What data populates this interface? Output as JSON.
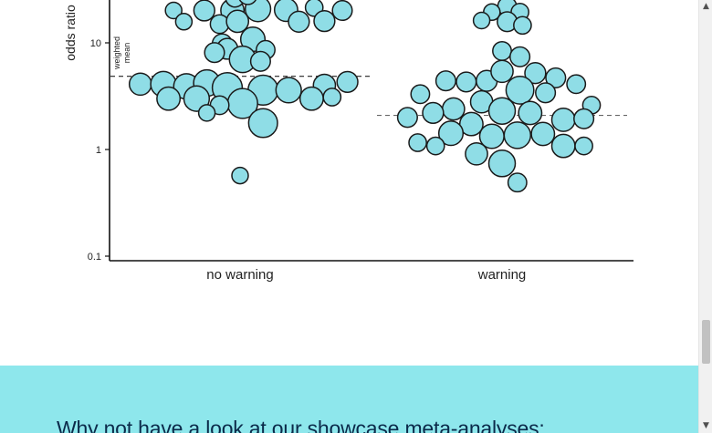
{
  "chart_data": {
    "type": "scatter",
    "title": "",
    "xlabel": "",
    "ylabel": "odds ratio",
    "y_scale": "log",
    "ylim": [
      0.08,
      25
    ],
    "categories": [
      "no warning",
      "warning"
    ],
    "yticks": [
      {
        "value": 0.1,
        "label": "0.1"
      },
      {
        "value": 1,
        "label": "1"
      },
      {
        "value": 10,
        "label": "10"
      }
    ],
    "annotation": [
      "weighted",
      "mean"
    ],
    "fill_color": "#8fdde6",
    "stroke_color": "#1a1a1a",
    "reference_line_dark": "#222222",
    "reference_line_light": "#666666",
    "series": [
      {
        "category": "no warning",
        "weighted_mean": 4.86,
        "points": [
          {
            "offset": -2.6,
            "y": 20.1,
            "w": 0.8
          },
          {
            "offset": -1.4,
            "y": 20.1,
            "w": 1.2
          },
          {
            "offset": -0.3,
            "y": 20.1,
            "w": 1.4
          },
          {
            "offset": 0.7,
            "y": 20.8,
            "w": 1.6
          },
          {
            "offset": 1.8,
            "y": 20.4,
            "w": 1.4
          },
          {
            "offset": 2.9,
            "y": 21.4,
            "w": 0.9
          },
          {
            "offset": 4.0,
            "y": 20.1,
            "w": 1.1
          },
          {
            "offset": -2.2,
            "y": 15.8,
            "w": 0.8
          },
          {
            "offset": -0.8,
            "y": 15.0,
            "w": 1.0
          },
          {
            "offset": -0.1,
            "y": 15.9,
            "w": 1.3
          },
          {
            "offset": 2.3,
            "y": 15.8,
            "w": 1.2
          },
          {
            "offset": 3.3,
            "y": 16.0,
            "w": 1.2
          },
          {
            "offset": -0.2,
            "y": 26.5,
            "w": 1.0
          },
          {
            "offset": 0.3,
            "y": 28.0,
            "w": 1.0
          },
          {
            "offset": -0.7,
            "y": 9.8,
            "w": 1.1
          },
          {
            "offset": 0.5,
            "y": 10.8,
            "w": 1.5
          },
          {
            "offset": -0.5,
            "y": 8.8,
            "w": 1.2
          },
          {
            "offset": 1.0,
            "y": 8.6,
            "w": 1.0
          },
          {
            "offset": -1.0,
            "y": 8.1,
            "w": 1.1
          },
          {
            "offset": 0.1,
            "y": 7.0,
            "w": 1.7
          },
          {
            "offset": 0.8,
            "y": 6.7,
            "w": 1.1
          },
          {
            "offset": -3.9,
            "y": 4.1,
            "w": 1.3
          },
          {
            "offset": -3.0,
            "y": 4.1,
            "w": 1.6
          },
          {
            "offset": -2.1,
            "y": 3.9,
            "w": 1.6
          },
          {
            "offset": -1.3,
            "y": 4.2,
            "w": 1.7
          },
          {
            "offset": -0.5,
            "y": 3.8,
            "w": 2.0
          },
          {
            "offset": 0.9,
            "y": 3.6,
            "w": 2.0
          },
          {
            "offset": 1.9,
            "y": 3.6,
            "w": 1.6
          },
          {
            "offset": 3.3,
            "y": 4.0,
            "w": 1.3
          },
          {
            "offset": 4.2,
            "y": 4.3,
            "w": 1.2
          },
          {
            "offset": -2.8,
            "y": 3.0,
            "w": 1.4
          },
          {
            "offset": -1.7,
            "y": 3.0,
            "w": 1.6
          },
          {
            "offset": 0.1,
            "y": 2.7,
            "w": 2.0
          },
          {
            "offset": 2.8,
            "y": 3.0,
            "w": 1.4
          },
          {
            "offset": 3.6,
            "y": 3.1,
            "w": 0.9
          },
          {
            "offset": -0.8,
            "y": 2.6,
            "w": 1.0
          },
          {
            "offset": -1.3,
            "y": 2.2,
            "w": 0.8
          },
          {
            "offset": 0.9,
            "y": 1.77,
            "w": 1.9
          },
          {
            "offset": 0.0,
            "y": 0.57,
            "w": 0.8
          }
        ]
      },
      {
        "category": "warning",
        "weighted_mean": 2.09,
        "points": [
          {
            "offset": 0.2,
            "y": 22.0,
            "w": 1.0
          },
          {
            "offset": -0.4,
            "y": 19.4,
            "w": 0.8
          },
          {
            "offset": 0.7,
            "y": 19.4,
            "w": 0.9
          },
          {
            "offset": -0.8,
            "y": 16.2,
            "w": 0.8
          },
          {
            "offset": 0.2,
            "y": 15.8,
            "w": 1.1
          },
          {
            "offset": 0.8,
            "y": 14.6,
            "w": 0.9
          },
          {
            "offset": 0.0,
            "y": 8.4,
            "w": 1.0
          },
          {
            "offset": 0.7,
            "y": 7.4,
            "w": 1.1
          },
          {
            "offset": -2.2,
            "y": 4.4,
            "w": 1.1
          },
          {
            "offset": -1.4,
            "y": 4.3,
            "w": 1.1
          },
          {
            "offset": -0.6,
            "y": 4.4,
            "w": 1.2
          },
          {
            "offset": 0.0,
            "y": 5.4,
            "w": 1.3
          },
          {
            "offset": 1.3,
            "y": 5.2,
            "w": 1.2
          },
          {
            "offset": 2.1,
            "y": 4.7,
            "w": 1.1
          },
          {
            "offset": 2.9,
            "y": 4.1,
            "w": 1.0
          },
          {
            "offset": 0.7,
            "y": 3.6,
            "w": 1.8
          },
          {
            "offset": 1.7,
            "y": 3.4,
            "w": 1.1
          },
          {
            "offset": -3.2,
            "y": 3.3,
            "w": 1.0
          },
          {
            "offset": -0.8,
            "y": 2.8,
            "w": 1.3
          },
          {
            "offset": 3.5,
            "y": 2.6,
            "w": 0.9
          },
          {
            "offset": -1.9,
            "y": 2.4,
            "w": 1.3
          },
          {
            "offset": -2.7,
            "y": 2.2,
            "w": 1.2
          },
          {
            "offset": -3.7,
            "y": 2.0,
            "w": 1.1
          },
          {
            "offset": 0.0,
            "y": 2.3,
            "w": 1.7
          },
          {
            "offset": 1.1,
            "y": 2.2,
            "w": 1.4
          },
          {
            "offset": 2.4,
            "y": 1.9,
            "w": 1.4
          },
          {
            "offset": 3.2,
            "y": 1.94,
            "w": 1.1
          },
          {
            "offset": -1.2,
            "y": 1.73,
            "w": 1.4
          },
          {
            "offset": -2.0,
            "y": 1.42,
            "w": 1.5
          },
          {
            "offset": -0.4,
            "y": 1.33,
            "w": 1.5
          },
          {
            "offset": 0.6,
            "y": 1.36,
            "w": 1.7
          },
          {
            "offset": 1.6,
            "y": 1.4,
            "w": 1.4
          },
          {
            "offset": 2.4,
            "y": 1.08,
            "w": 1.4
          },
          {
            "offset": 3.2,
            "y": 1.08,
            "w": 0.9
          },
          {
            "offset": -3.3,
            "y": 1.16,
            "w": 0.9
          },
          {
            "offset": -2.6,
            "y": 1.08,
            "w": 0.9
          },
          {
            "offset": -1.0,
            "y": 0.91,
            "w": 1.3
          },
          {
            "offset": 0.0,
            "y": 0.74,
            "w": 1.7
          },
          {
            "offset": 0.6,
            "y": 0.49,
            "w": 1.0
          }
        ]
      }
    ]
  },
  "band": {
    "heading": "Why not have a look at our showcase meta-analyses:",
    "background": "#8ee7ec",
    "text_color": "#0b2a4a"
  },
  "scrollbar": {
    "up_icon": "▲",
    "down_icon": "▼",
    "position_fraction": 0.79
  }
}
